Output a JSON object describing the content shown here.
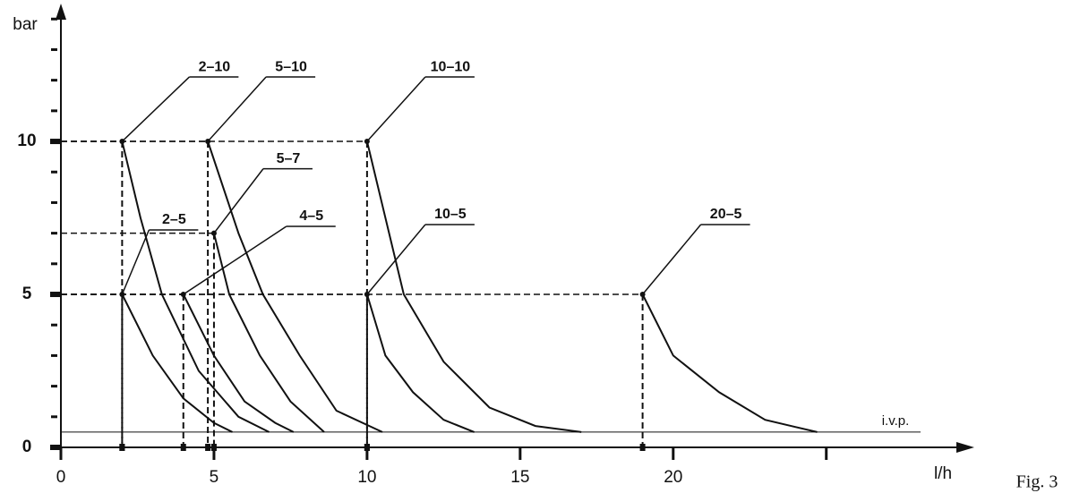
{
  "chart_data": {
    "type": "line",
    "y_label": "bar",
    "x_label": "l/h",
    "figure_label": "Fig. 3",
    "xlim": [
      0,
      29.6
    ],
    "ylim": [
      0,
      14.3
    ],
    "xticks": [
      0,
      5,
      10,
      15,
      20
    ],
    "yticks": [
      0,
      5,
      10
    ],
    "y_minor_ticks": [
      1,
      2,
      3,
      4,
      6,
      7,
      8,
      9,
      11,
      12,
      13,
      14
    ],
    "x_minor_ticks": [
      25
    ],
    "color": "#111111",
    "reference_line": {
      "value": 0.5,
      "label": "i.v.p."
    },
    "series": [
      {
        "name": "2–10",
        "x": [
          2,
          2.6,
          3.3,
          4.5,
          5.8,
          6.8
        ],
        "values": [
          10,
          7.5,
          5,
          2.5,
          1,
          0.5
        ]
      },
      {
        "name": "5–10",
        "x": [
          4.8,
          5.8,
          6.6,
          7.8,
          9,
          10.5
        ],
        "values": [
          10,
          7,
          5,
          3,
          1.2,
          0.5
        ]
      },
      {
        "name": "10–10",
        "x": [
          10,
          11.2,
          12.5,
          14,
          15.5,
          17
        ],
        "values": [
          10,
          5,
          2.8,
          1.3,
          0.7,
          0.5
        ]
      },
      {
        "name": "5–7",
        "x": [
          5,
          5.5,
          6.5,
          7.5,
          8.6
        ],
        "values": [
          7,
          5,
          3,
          1.5,
          0.5
        ]
      },
      {
        "name": "2–5",
        "x": [
          2,
          3,
          4,
          5,
          5.6
        ],
        "values": [
          5,
          3,
          1.6,
          0.8,
          0.5
        ]
      },
      {
        "name": "4–5",
        "x": [
          4,
          5,
          6,
          7,
          7.6
        ],
        "values": [
          5,
          3,
          1.5,
          0.8,
          0.5
        ]
      },
      {
        "name": "10–5",
        "x": [
          10,
          10.6,
          11.5,
          12.5,
          13.5
        ],
        "values": [
          5,
          3,
          1.8,
          0.9,
          0.5
        ]
      },
      {
        "name": "20–5",
        "x": [
          19,
          20,
          21.5,
          23,
          24.7
        ],
        "values": [
          5,
          3,
          1.8,
          0.9,
          0.5
        ]
      }
    ]
  }
}
